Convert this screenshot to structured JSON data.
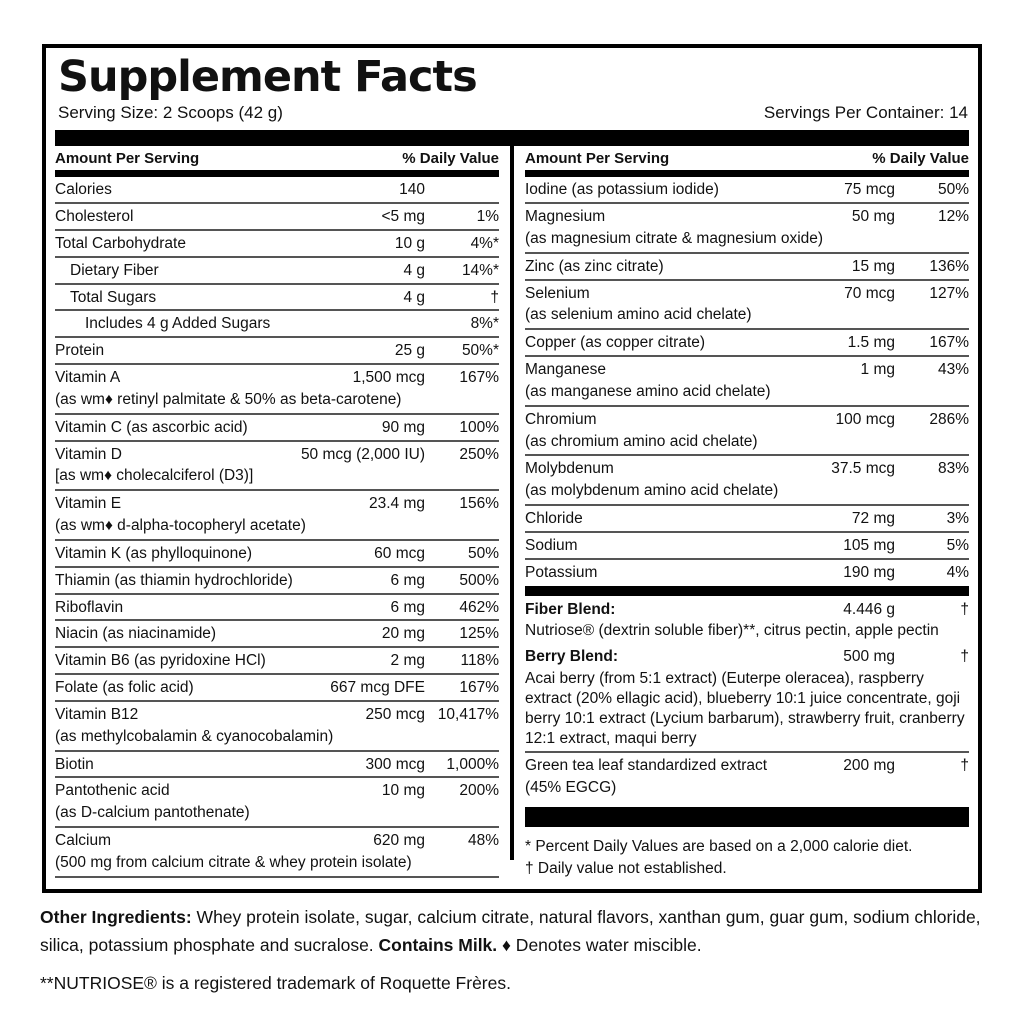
{
  "label": {
    "title": "Supplement Facts",
    "serving_size": "Serving Size: 2 Scoops (42 g)",
    "servings_per_container": "Servings Per Container: 14",
    "column_header": {
      "amount": "Amount Per Serving",
      "daily_value": "% Daily Value"
    }
  },
  "columns": {
    "left": {
      "rows": [
        {
          "name": "Calories",
          "amount": "140",
          "pct": ""
        },
        {
          "name": "Cholesterol",
          "amount": "<5 mg",
          "pct": "1%"
        },
        {
          "name": "Total Carbohydrate",
          "amount": "10 g",
          "pct": "4%*"
        },
        {
          "name": "Dietary Fiber",
          "indent": 1,
          "amount": "4 g",
          "pct": "14%*"
        },
        {
          "name": "Total Sugars",
          "indent": 1,
          "amount": "4 g",
          "pct": "†"
        },
        {
          "name": "Includes 4 g Added Sugars",
          "indent": 2,
          "amount": "",
          "pct": "8%*"
        },
        {
          "name": "Protein",
          "amount": "25 g",
          "pct": "50%*"
        },
        {
          "name": "Vitamin A",
          "amount": "1,500 mcg",
          "pct": "167%",
          "sub": "(as wm♦ retinyl palmitate & 50% as beta-carotene)"
        },
        {
          "name": "Vitamin C (as ascorbic acid)",
          "amount": "90 mg",
          "pct": "100%"
        },
        {
          "name": "Vitamin D",
          "amount": "50 mcg (2,000 IU)",
          "pct": "250%",
          "sub": "[as wm♦ cholecalciferol (D3)]"
        },
        {
          "name": "Vitamin E",
          "amount": "23.4 mg",
          "pct": "156%",
          "sub": "(as wm♦ d-alpha-tocopheryl acetate)"
        },
        {
          "name": "Vitamin K (as phylloquinone)",
          "amount": "60 mcg",
          "pct": "50%"
        },
        {
          "name": "Thiamin (as thiamin hydrochloride)",
          "amount": "6 mg",
          "pct": "500%"
        },
        {
          "name": "Riboflavin",
          "amount": "6 mg",
          "pct": "462%"
        },
        {
          "name": "Niacin (as niacinamide)",
          "amount": "20 mg",
          "pct": "125%"
        },
        {
          "name": "Vitamin B6 (as pyridoxine HCl)",
          "amount": "2 mg",
          "pct": "118%"
        },
        {
          "name": "Folate (as folic acid)",
          "amount": "667 mcg DFE",
          "pct": "167%"
        },
        {
          "name": "Vitamin B12",
          "amount": "250 mcg",
          "pct": "10,417%",
          "sub": "(as methylcobalamin & cyanocobalamin)"
        },
        {
          "name": "Biotin",
          "amount": "300 mcg",
          "pct": "1,000%"
        },
        {
          "name": "Pantothenic acid",
          "amount": "10 mg",
          "pct": "200%",
          "sub": "(as D-calcium pantothenate)"
        },
        {
          "name": "Calcium",
          "amount": "620 mg",
          "pct": "48%",
          "sub": "(500 mg from calcium citrate & whey protein isolate)"
        }
      ]
    },
    "right": {
      "rows": [
        {
          "name": "Iodine (as potassium iodide)",
          "amount": "75 mcg",
          "pct": "50%"
        },
        {
          "name": "Magnesium",
          "amount": "50 mg",
          "pct": "12%",
          "sub": "(as magnesium citrate & magnesium oxide)"
        },
        {
          "name": "Zinc (as zinc citrate)",
          "amount": "15 mg",
          "pct": "136%"
        },
        {
          "name": "Selenium",
          "amount": "70 mcg",
          "pct": "127%",
          "sub": "(as selenium amino acid chelate)"
        },
        {
          "name": "Copper (as copper citrate)",
          "amount": "1.5 mg",
          "pct": "167%"
        },
        {
          "name": "Manganese",
          "amount": "1 mg",
          "pct": "43%",
          "sub": "(as manganese amino acid chelate)"
        },
        {
          "name": "Chromium",
          "amount": "100 mcg",
          "pct": "286%",
          "sub": "(as chromium amino acid chelate)"
        },
        {
          "name": "Molybdenum",
          "amount": "37.5 mcg",
          "pct": "83%",
          "sub": "(as molybdenum amino acid chelate)"
        },
        {
          "name": "Chloride",
          "amount": "72 mg",
          "pct": "3%"
        },
        {
          "name": "Sodium",
          "amount": "105 mg",
          "pct": "5%"
        },
        {
          "name": "Potassium",
          "amount": "190 mg",
          "pct": "4%",
          "rule": false
        },
        {
          "type": "bar"
        },
        {
          "name": "Fiber Blend:",
          "bold": true,
          "amount": "4.446 g",
          "pct": "†",
          "sub": "Nutriose® (dextrin soluble fiber)**, citrus pectin, apple pectin",
          "rule": false
        },
        {
          "name": "Berry Blend:",
          "bold": true,
          "amount": "500 mg",
          "pct": "†",
          "sub": "Acai berry (from 5:1 extract) (Euterpe oleracea), raspberry extract (20% ellagic acid), blueberry 10:1 juice concentrate, goji berry 10:1 extract (Lycium barbarum), strawberry fruit, cranberry 12:1 extract, maqui berry"
        },
        {
          "name": "Green tea leaf standardized extract",
          "amount": "200 mg",
          "pct": "†",
          "sub": "(45% EGCG)",
          "rule": false
        },
        {
          "type": "bar",
          "tall": true
        }
      ],
      "footnotes": [
        "* Percent Daily Values are based on a 2,000 calorie diet.",
        "† Daily value not established."
      ]
    }
  },
  "footer": {
    "other_ingredients_label": "Other Ingredients:",
    "other_ingredients_text": " Whey protein isolate, sugar, calcium citrate, natural flavors, xanthan gum, guar gum, sodium chloride, silica, potassium phosphate and sucralose. ",
    "contains_label": "Contains Milk.",
    "water_miscible_note": " ♦ Denotes water miscible.",
    "trademark_note": "**NUTRIOSE® is a registered trademark of Roquette Frères."
  },
  "colors": {
    "text": "#111111",
    "bar": "#000000",
    "hairline": "#555555",
    "border": "#000000",
    "background": "#ffffff"
  }
}
